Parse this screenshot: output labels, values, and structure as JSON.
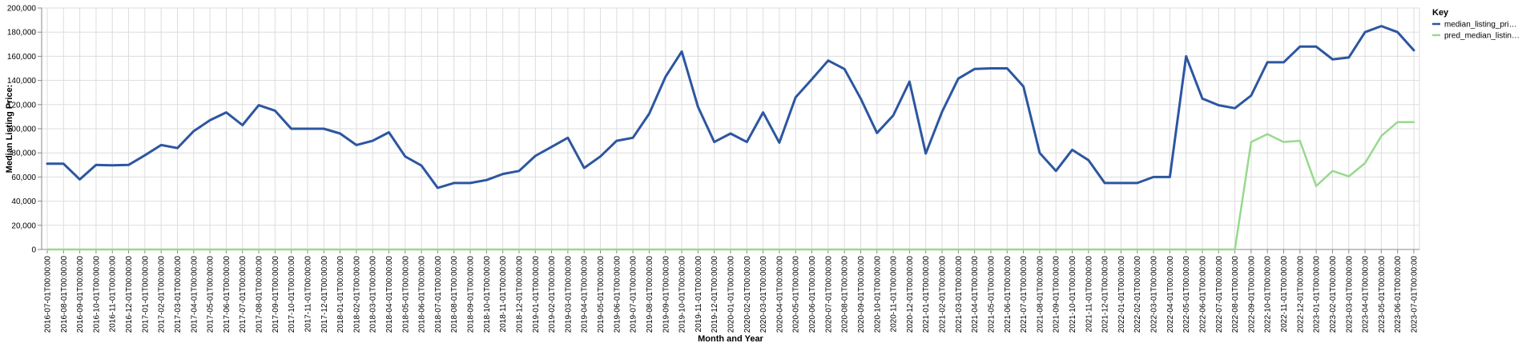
{
  "chart_data": {
    "type": "line",
    "xlabel": "Month and Year",
    "ylabel": "Median Listing Price:",
    "ylim": [
      0,
      200000
    ],
    "yticks": [
      "0",
      "20,000",
      "40,000",
      "60,000",
      "80,000",
      "100,000",
      "120,000",
      "140,000",
      "160,000",
      "180,000",
      "200,000"
    ],
    "grid": true,
    "legend": {
      "title": "Key",
      "position": "right",
      "entries": [
        "median_listing_pri…",
        "pred_median_listin…"
      ]
    },
    "categories": [
      "2016-07-01T00:00:00",
      "2016-08-01T00:00:00",
      "2016-09-01T00:00:00",
      "2016-10-01T00:00:00",
      "2016-11-01T00:00:00",
      "2016-12-01T00:00:00",
      "2017-01-01T00:00:00",
      "2017-02-01T00:00:00",
      "2017-03-01T00:00:00",
      "2017-04-01T00:00:00",
      "2017-05-01T00:00:00",
      "2017-06-01T00:00:00",
      "2017-07-01T00:00:00",
      "2017-08-01T00:00:00",
      "2017-09-01T00:00:00",
      "2017-10-01T00:00:00",
      "2017-11-01T00:00:00",
      "2017-12-01T00:00:00",
      "2018-01-01T00:00:00",
      "2018-02-01T00:00:00",
      "2018-03-01T00:00:00",
      "2018-04-01T00:00:00",
      "2018-05-01T00:00:00",
      "2018-06-01T00:00:00",
      "2018-07-01T00:00:00",
      "2018-08-01T00:00:00",
      "2018-09-01T00:00:00",
      "2018-10-01T00:00:00",
      "2018-11-01T00:00:00",
      "2018-12-01T00:00:00",
      "2019-01-01T00:00:00",
      "2019-02-01T00:00:00",
      "2019-03-01T00:00:00",
      "2019-04-01T00:00:00",
      "2019-05-01T00:00:00",
      "2019-06-01T00:00:00",
      "2019-07-01T00:00:00",
      "2019-08-01T00:00:00",
      "2019-09-01T00:00:00",
      "2019-10-01T00:00:00",
      "2019-11-01T00:00:00",
      "2019-12-01T00:00:00",
      "2020-01-01T00:00:00",
      "2020-02-01T00:00:00",
      "2020-03-01T00:00:00",
      "2020-04-01T00:00:00",
      "2020-05-01T00:00:00",
      "2020-06-01T00:00:00",
      "2020-07-01T00:00:00",
      "2020-08-01T00:00:00",
      "2020-09-01T00:00:00",
      "2020-10-01T00:00:00",
      "2020-11-01T00:00:00",
      "2020-12-01T00:00:00",
      "2021-01-01T00:00:00",
      "2021-02-01T00:00:00",
      "2021-03-01T00:00:00",
      "2021-04-01T00:00:00",
      "2021-05-01T00:00:00",
      "2021-06-01T00:00:00",
      "2021-07-01T00:00:00",
      "2021-08-01T00:00:00",
      "2021-09-01T00:00:00",
      "2021-10-01T00:00:00",
      "2021-11-01T00:00:00",
      "2021-12-01T00:00:00",
      "2022-01-01T00:00:00",
      "2022-02-01T00:00:00",
      "2022-03-01T00:00:00",
      "2022-04-01T00:00:00",
      "2022-05-01T00:00:00",
      "2022-06-01T00:00:00",
      "2022-07-01T00:00:00",
      "2022-08-01T00:00:00",
      "2022-09-01T00:00:00",
      "2022-10-01T00:00:00",
      "2022-11-01T00:00:00",
      "2022-12-01T00:00:00",
      "2023-01-01T00:00:00",
      "2023-02-01T00:00:00",
      "2023-03-01T00:00:00",
      "2023-04-01T00:00:00",
      "2023-05-01T00:00:00",
      "2023-06-01T00:00:00",
      "2023-07-01T00:00:00"
    ],
    "series": [
      {
        "name": "median_listing_pri…",
        "color": "#2c56a0",
        "values": [
          71000,
          71000,
          58000,
          70000,
          69700,
          70000,
          78000,
          86500,
          84000,
          98000,
          107000,
          113500,
          103000,
          119500,
          115000,
          100000,
          100000,
          100000,
          96000,
          86500,
          90000,
          97000,
          77000,
          69500,
          51000,
          55000,
          55000,
          57500,
          62500,
          65000,
          77500,
          85000,
          92500,
          67500,
          77000,
          90000,
          92500,
          112500,
          143000,
          164000,
          118000,
          89000,
          96000,
          89000,
          113500,
          88500,
          126000,
          141000,
          156500,
          149500,
          125000,
          96500,
          111000,
          139000,
          79500,
          114000,
          141500,
          149500,
          150000,
          150000,
          135000,
          80000,
          65000,
          82500,
          74000,
          55000,
          55000,
          55000,
          60000,
          60000,
          160000,
          125000,
          119500,
          117000,
          127500,
          155000,
          155000,
          168000,
          168000,
          157500,
          159000,
          180000,
          185000,
          180000,
          165000
        ]
      },
      {
        "name": "pred_median_listin…",
        "color": "#98d98e",
        "values": [
          0,
          0,
          0,
          0,
          0,
          0,
          0,
          0,
          0,
          0,
          0,
          0,
          0,
          0,
          0,
          0,
          0,
          0,
          0,
          0,
          0,
          0,
          0,
          0,
          0,
          0,
          0,
          0,
          0,
          0,
          0,
          0,
          0,
          0,
          0,
          0,
          0,
          0,
          0,
          0,
          0,
          0,
          0,
          0,
          0,
          0,
          0,
          0,
          0,
          0,
          0,
          0,
          0,
          0,
          0,
          0,
          0,
          0,
          0,
          0,
          0,
          0,
          0,
          0,
          0,
          0,
          0,
          0,
          0,
          0,
          0,
          0,
          0,
          0,
          89000,
          95500,
          89000,
          90000,
          52500,
          65000,
          60500,
          71500,
          94000,
          105500,
          105500
        ]
      }
    ]
  }
}
